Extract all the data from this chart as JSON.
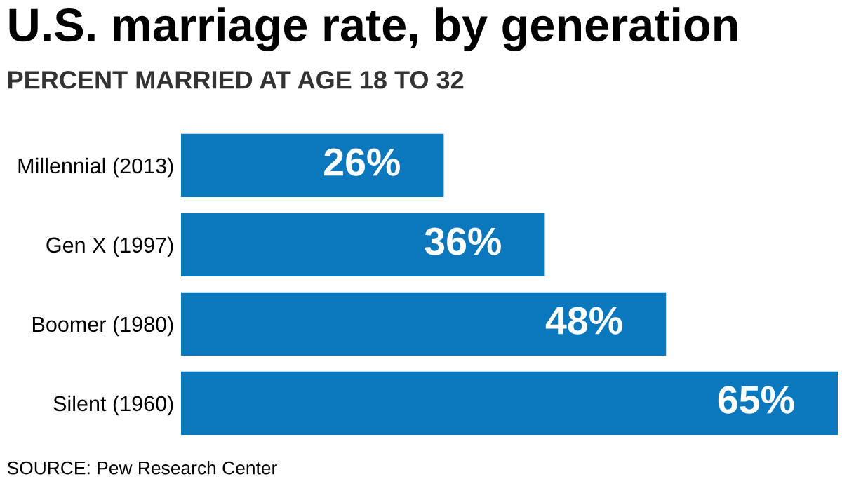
{
  "chart_data": {
    "type": "bar",
    "orientation": "horizontal",
    "title": "U.S. marriage rate, by generation",
    "subtitle": "PERCENT MARRIED AT AGE 18 TO 32",
    "categories": [
      "Millennial (2013)",
      "Gen X (1997)",
      "Boomer (1980)",
      "Silent (1960)"
    ],
    "values": [
      26,
      36,
      48,
      65
    ],
    "value_labels": [
      "26%",
      "36%",
      "48%",
      "65%"
    ],
    "color": "#0b77bd",
    "annotations": [
      "SOURCE: Pew Research Center"
    ],
    "grid": false,
    "legend": false
  }
}
